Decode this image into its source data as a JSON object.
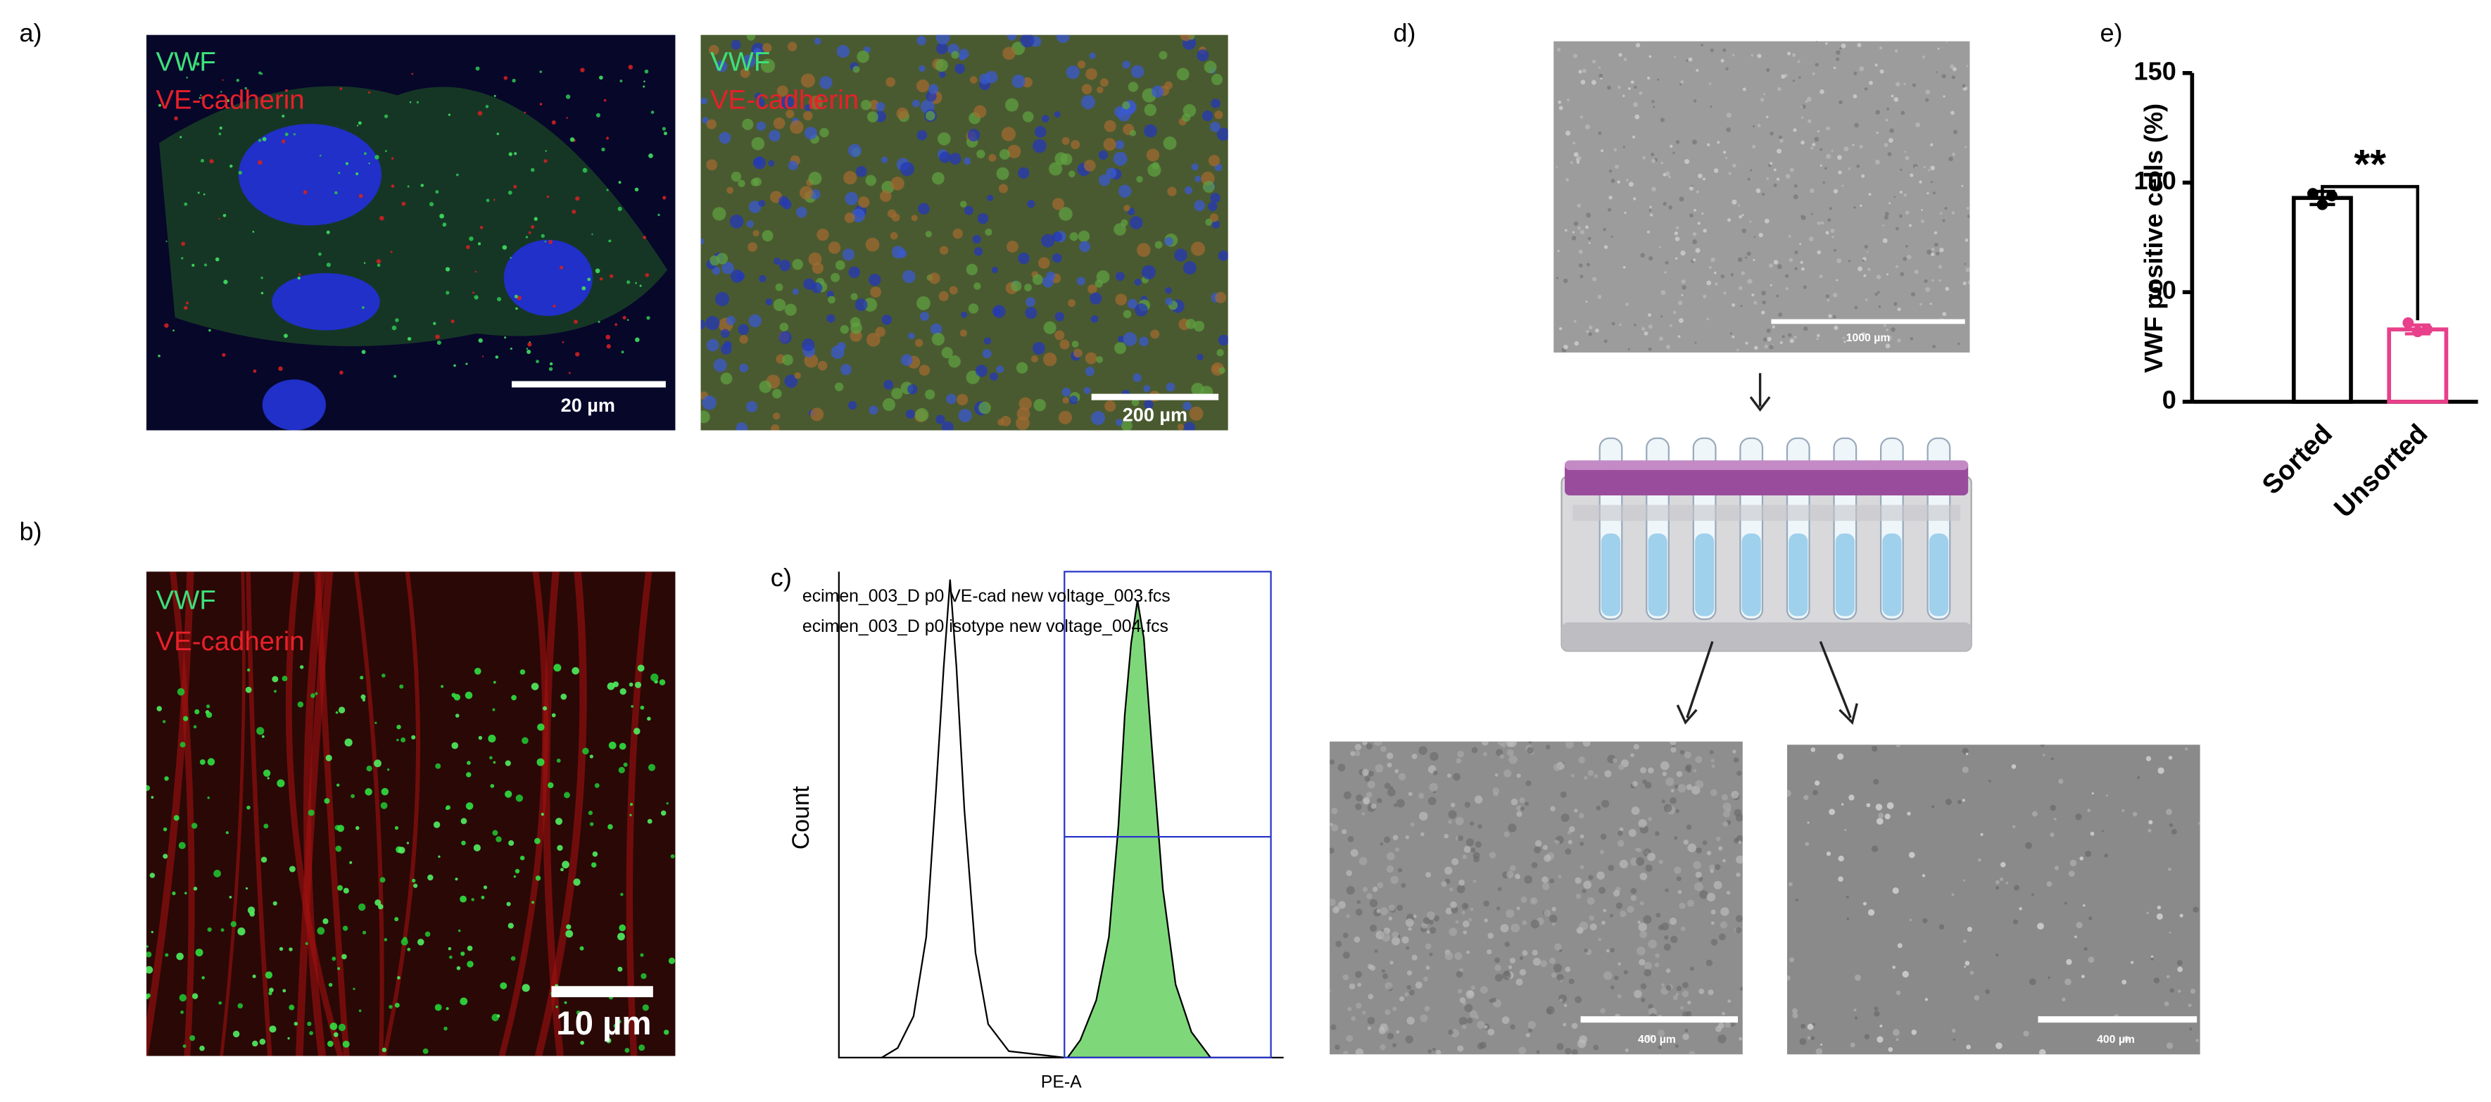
{
  "panels": {
    "a": "a)",
    "b": "b)",
    "c": "c)",
    "d": "d)",
    "e": "e)"
  },
  "panel_a": {
    "left": {
      "stain_1": "VWF",
      "stain_2": "VE-cadherin",
      "scale_bar": "20 µm"
    },
    "right": {
      "stain_1": "VWF",
      "stain_2": "VE-cadherin",
      "scale_bar": "200 µm"
    }
  },
  "panel_b": {
    "stain_1": "VWF",
    "stain_2": "VE-cadherin",
    "scale_bar": "10 µm"
  },
  "panel_c": {
    "legend": [
      "ecimen_003_D p0 VE-cad new voltage_003.fcs",
      "ecimen_003_D p0 isotype new voltage_004.fcs"
    ],
    "y_label": "Count",
    "x_label": "PE-A"
  },
  "panel_d": {
    "top_scale_bar": "1000 µm",
    "left_scale_bar": "400 µm",
    "right_scale_bar": "400 µm"
  },
  "chart_data": {
    "type": "bar",
    "y_label": "VWF positive cells (%)",
    "categories": [
      "Sorted",
      "Unsorted"
    ],
    "values": [
      93,
      33
    ],
    "errors": [
      3,
      2
    ],
    "points": [
      [
        95,
        90,
        94
      ],
      [
        36,
        32,
        33
      ]
    ],
    "colors": [
      "#000000",
      "#e8408a"
    ],
    "ylim": [
      0,
      150
    ],
    "yticks": [
      0,
      50,
      100,
      150
    ],
    "annotation": "**"
  }
}
